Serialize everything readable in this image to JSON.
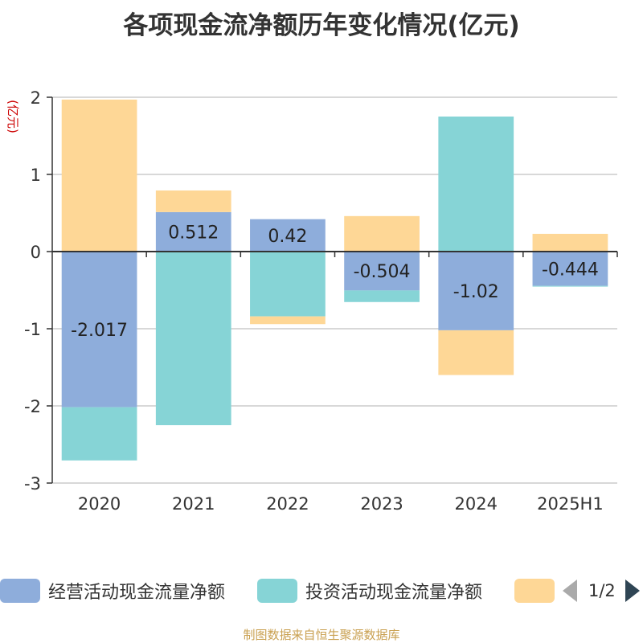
{
  "title": "各项现金流净额历年变化情况(亿元)",
  "source": "制图数据来自恒生聚源数据库",
  "legend_page": "1/2",
  "colors": {
    "operating": "#8eaddb",
    "investing": "#86d4d6",
    "financing": "#fed796",
    "axis": "#333333",
    "grid": "#cccccc",
    "unit_label": "#cc0000"
  },
  "chart_data": {
    "type": "bar",
    "stacked": true,
    "categories": [
      "2020",
      "2021",
      "2022",
      "2023",
      "2024",
      "2025H1"
    ],
    "ylabel": "(亿元)",
    "ylim": [
      -3,
      2
    ],
    "yticks": [
      2,
      1,
      0,
      -1,
      -2,
      -3
    ],
    "grid": true,
    "legend_position": "bottom",
    "series": [
      {
        "name": "经营活动现金流量净额",
        "color_key": "operating",
        "values": [
          -2.017,
          0.512,
          0.42,
          -0.504,
          -1.02,
          -0.444
        ],
        "data_labels": [
          "-2.017",
          "0.512",
          "0.42",
          "-0.504",
          "-1.02",
          "-0.444"
        ]
      },
      {
        "name": "投资活动现金流量净额",
        "color_key": "investing",
        "values": [
          -0.69,
          -2.25,
          -0.84,
          -0.15,
          1.75,
          -0.01
        ]
      },
      {
        "name": "",
        "color_key": "financing",
        "values": [
          1.97,
          0.28,
          -0.1,
          0.46,
          -0.58,
          0.23
        ]
      }
    ]
  }
}
